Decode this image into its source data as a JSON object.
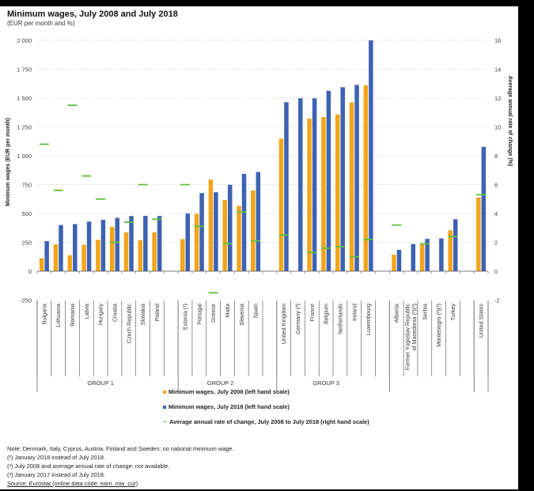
{
  "chart_data": {
    "type": "bar",
    "title": "Minimum wages, July 2008 and July 2018",
    "subtitle": "(EUR per month and %)",
    "ylabel": "Minimum wages (EUR per month)",
    "ylabel_right": "Average annual rate of change (%)",
    "ylim": [
      -250,
      2000
    ],
    "ylim_right": [
      -2,
      16
    ],
    "yticks": [
      -250,
      0,
      250,
      500,
      750,
      1000,
      1250,
      1500,
      1750,
      2000
    ],
    "ytick_labels": [
      "-250",
      "0",
      "250",
      "500",
      "750",
      "1 000",
      "1 250",
      "1 500",
      "1 750",
      "2 000"
    ],
    "yticks_right": [
      -2,
      0,
      2,
      4,
      6,
      8,
      10,
      12,
      14,
      16
    ],
    "grid": true,
    "legend_position": "bottom",
    "colors": {
      "wage_2008": "#f2a51a",
      "wage_2018": "#3d62b3",
      "rate": "#5fbf3a"
    },
    "categories": [
      "Bulgaria",
      "Lithuania",
      "Romania",
      "Latvia",
      "Hungary",
      "Croatia",
      "Czech Republic",
      "Slovakia",
      "Poland",
      "",
      "Estonia (¹)",
      "Portugal",
      "Greece",
      "Malta",
      "Slovenia",
      "Spain",
      "",
      "United Kingdom",
      "Germany (²)",
      "France",
      "Belgium",
      "Netherlands",
      "Ireland",
      "Luxembourg",
      "",
      "Albania",
      "Former Yugoslav Republic\nof Macedonia (²)(³)",
      "Serbia",
      "Montenegro (²)(³)",
      "Turkey",
      "",
      "United States"
    ],
    "groups": [
      {
        "label": "GROUP 1",
        "start": 0,
        "end": 9
      },
      {
        "label": "GROUP 2",
        "start": 10,
        "end": 16
      },
      {
        "label": "GROUP 3",
        "start": 17,
        "end": 24
      }
    ],
    "series": [
      {
        "name": "Minimum wages, July 2008 (left hand scale)",
        "axis": "left",
        "kind": "bar",
        "values": [
          112,
          232,
          139,
          229,
          272,
          384,
          337,
          269,
          336,
          null,
          278,
          497,
          794,
          617,
          566,
          700,
          null,
          1148,
          null,
          1321,
          1336,
          1357,
          1462,
          1610,
          null,
          143,
          null,
          236,
          null,
          355,
          null,
          638
        ]
      },
      {
        "name": "Minimum wages, July 2018 (left hand scale)",
        "axis": "left",
        "kind": "bar",
        "values": [
          261,
          400,
          408,
          430,
          445,
          462,
          478,
          480,
          478,
          null,
          500,
          677,
          684,
          748,
          843,
          859,
          null,
          1464,
          1498,
          1498,
          1563,
          1594,
          1614,
          1999,
          null,
          185,
          235,
          280,
          284,
          450,
          null,
          1077
        ]
      },
      {
        "name": "Average annual rate of change, July 2008 to July 2018 (right hand scale)",
        "axis": "right",
        "kind": "marker",
        "values": [
          8.8,
          5.6,
          11.5,
          6.6,
          5.0,
          2.0,
          3.4,
          6.0,
          3.6,
          null,
          6.0,
          3.1,
          -1.5,
          1.9,
          4.1,
          2.1,
          null,
          2.5,
          null,
          1.3,
          1.6,
          1.7,
          1.0,
          2.2,
          null,
          3.2,
          null,
          1.9,
          null,
          2.4,
          null,
          5.3
        ]
      }
    ]
  },
  "legend": {
    "item_2008": "Minimum wages, July 2008 (left hand scale)",
    "item_2018": "Minimum wages, July 2018 (left hand scale)",
    "item_rate": "Average annual rate of change, July 2008 to July 2018 (right hand scale)"
  },
  "notes": {
    "note": "Note: Denmark, Italy, Cyprus, Austria, Finland and Sweden: no national minimum wage.",
    "fn1": "(¹) January 2018 instead of July 2018.",
    "fn2": "(²) July 2008 and average annual rate of change: not available.",
    "fn3": "(³) January 2017 instead of July 2018.",
    "source": "Source: Eurostat (online data code: earn_mw_cur)"
  }
}
